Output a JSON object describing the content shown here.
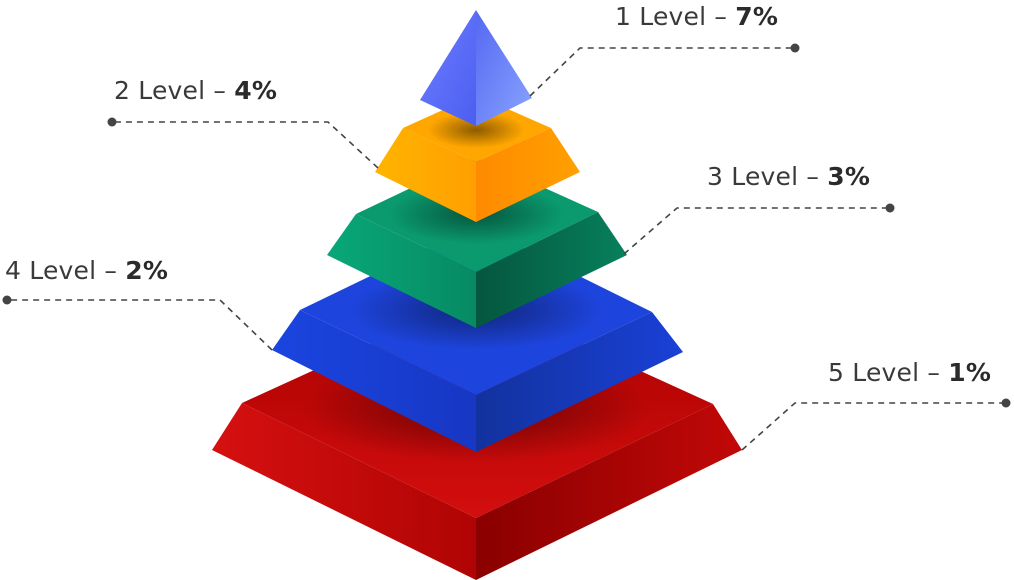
{
  "levels": [
    {
      "name": "1 Level",
      "sep": "–",
      "percent": "7%",
      "color": "#5b6ef5"
    },
    {
      "name": "2 Level",
      "sep": "–",
      "percent": "4%",
      "color": "#ff9f0a"
    },
    {
      "name": "3 Level",
      "sep": "–",
      "percent": "3%",
      "color": "#0a8a63"
    },
    {
      "name": "4 Level",
      "sep": "–",
      "percent": "2%",
      "color": "#1a3fd6"
    },
    {
      "name": "5 Level",
      "sep": "–",
      "percent": "1%",
      "color": "#c40a0a"
    }
  ]
}
